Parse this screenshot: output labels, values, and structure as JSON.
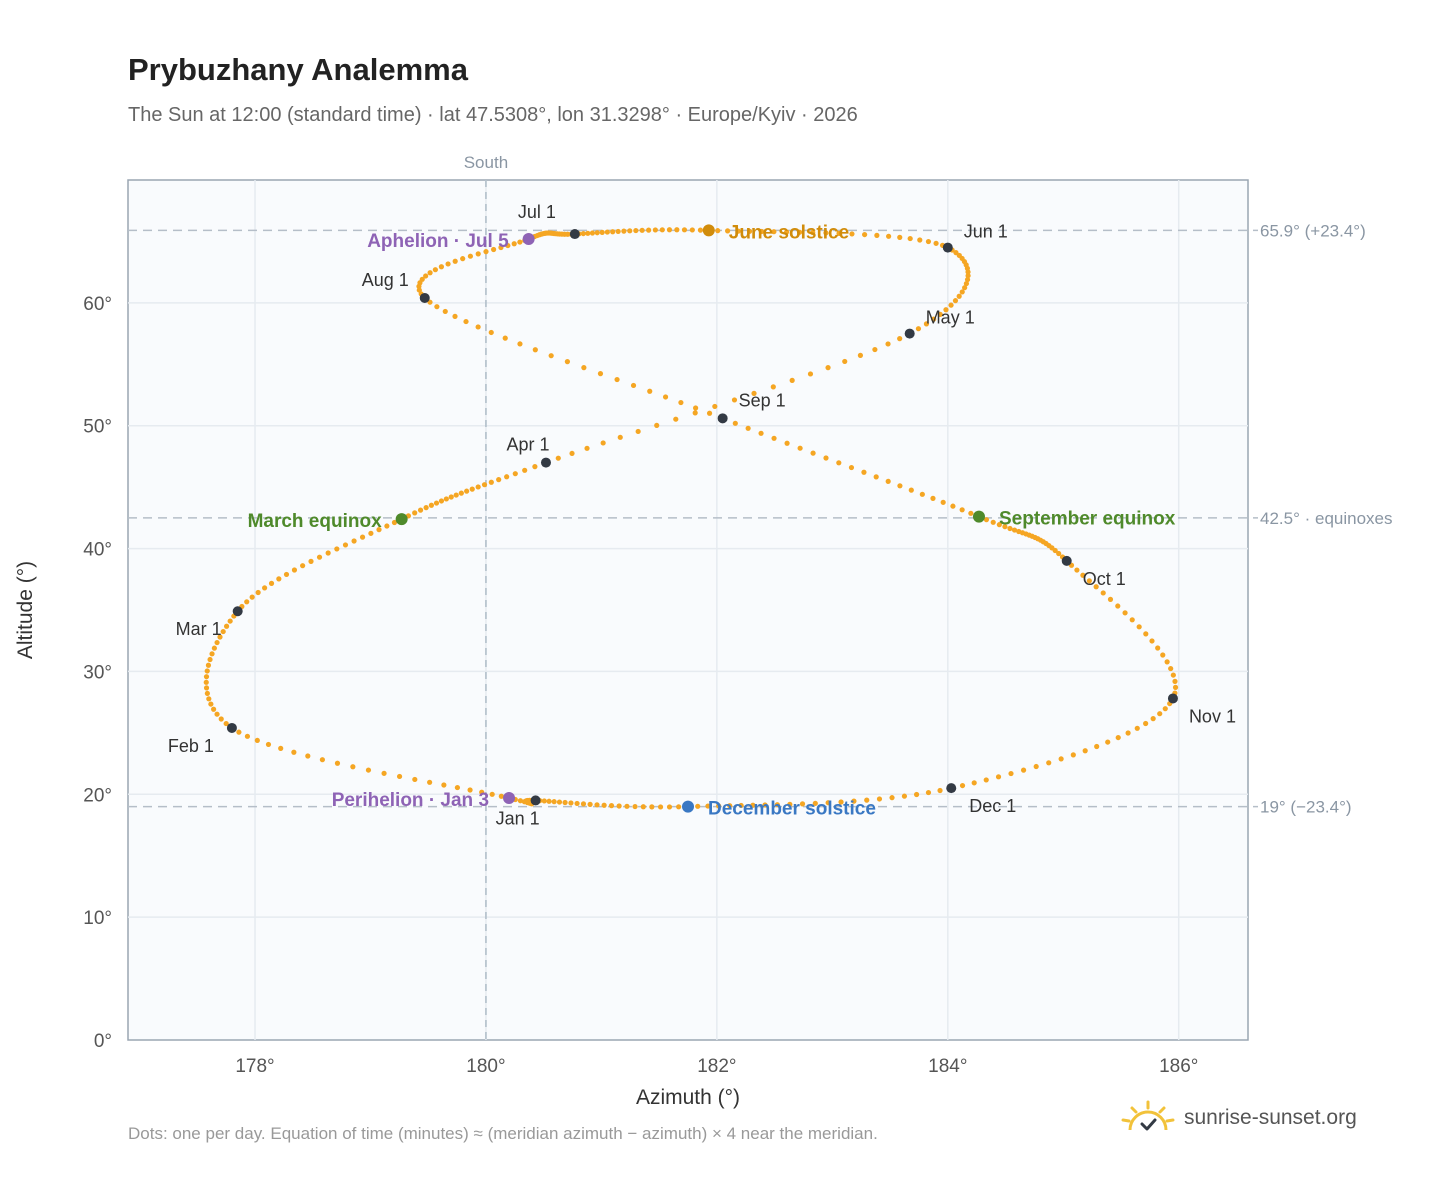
{
  "title": "Prybuzhany Analemma",
  "subtitle": "The Sun at 12:00 (standard time) · lat 47.5308°, lon 31.3298° · Europe/Kyiv · 2026",
  "footnote": "Dots: one per day. Equation of time (minutes) ≈ (meridian azimuth − azimuth) × 4 near the meridian.",
  "brand": {
    "name": "sunrise-sunset.org",
    "logo_icon": "sun-check-icon"
  },
  "colors": {
    "dots": "#f5a623",
    "month_marker": "#333a44",
    "solstice_june": "#d18c0b",
    "solstice_december": "#3a78c3",
    "equinox": "#4f8a2b",
    "apsis": "#8e63b5",
    "reference_line": "#b5bec8",
    "plot_bg": "#f9fbfd",
    "grid": "#e6ebf0"
  },
  "chart_data": {
    "type": "scatter",
    "xlabel": "Azimuth (°)",
    "ylabel": "Altitude (°)",
    "xlim": [
      176.9,
      186.6
    ],
    "ylim": [
      0,
      70
    ],
    "x_ticks": [
      178,
      180,
      182,
      184,
      186
    ],
    "x_tick_labels": [
      "178°",
      "180°",
      "182°",
      "184°",
      "186°"
    ],
    "y_ticks": [
      0,
      10,
      20,
      30,
      40,
      50,
      60
    ],
    "y_tick_labels": [
      "0°",
      "10°",
      "20°",
      "30°",
      "40°",
      "50°",
      "60°"
    ],
    "grid": true,
    "meridian": {
      "azimuth": 180,
      "label": "South"
    },
    "reference_lines": [
      {
        "altitude": 65.9,
        "label": "65.9° (+23.4°)"
      },
      {
        "altitude": 42.5,
        "label": "42.5° · equinoxes"
      },
      {
        "altitude": 19.0,
        "label": "19° (−23.4°)"
      }
    ],
    "monthly_points": [
      {
        "label": "Jan 1",
        "azimuth": 180.43,
        "altitude": 19.5
      },
      {
        "label": "Feb 1",
        "azimuth": 177.8,
        "altitude": 25.4
      },
      {
        "label": "Mar 1",
        "azimuth": 177.85,
        "altitude": 34.9
      },
      {
        "label": "Apr 1",
        "azimuth": 180.52,
        "altitude": 47.0
      },
      {
        "label": "May 1",
        "azimuth": 183.67,
        "altitude": 57.5
      },
      {
        "label": "Jun 1",
        "azimuth": 184.0,
        "altitude": 64.5
      },
      {
        "label": "Jul 1",
        "azimuth": 180.77,
        "altitude": 65.6
      },
      {
        "label": "Aug 1",
        "azimuth": 179.47,
        "altitude": 60.4
      },
      {
        "label": "Sep 1",
        "azimuth": 182.05,
        "altitude": 50.6
      },
      {
        "label": "Oct 1",
        "azimuth": 185.03,
        "altitude": 39.0
      },
      {
        "label": "Nov 1",
        "azimuth": 185.95,
        "altitude": 27.8
      },
      {
        "label": "Dec 1",
        "azimuth": 184.03,
        "altitude": 20.5
      }
    ],
    "events": [
      {
        "label": "June solstice",
        "azimuth": 181.93,
        "altitude": 65.9,
        "kind": "solstice_june"
      },
      {
        "label": "December solstice",
        "azimuth": 181.75,
        "altitude": 19.0,
        "kind": "solstice_december"
      },
      {
        "label": "March equinox",
        "azimuth": 179.27,
        "altitude": 42.4,
        "kind": "equinox"
      },
      {
        "label": "September equinox",
        "azimuth": 184.27,
        "altitude": 42.6,
        "kind": "equinox"
      },
      {
        "label": "Aphelion · Jul 5",
        "azimuth": 180.37,
        "altitude": 65.2,
        "kind": "apsis"
      },
      {
        "label": "Perihelion · Jan 3",
        "azimuth": 180.2,
        "altitude": 19.7,
        "kind": "apsis"
      }
    ]
  }
}
